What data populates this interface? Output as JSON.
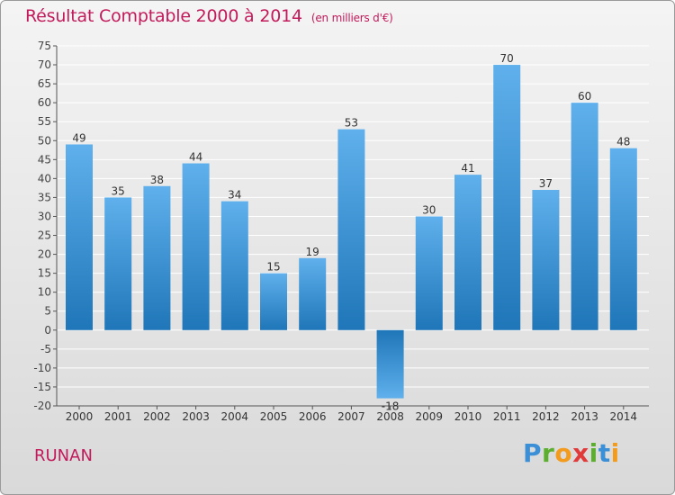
{
  "header": {
    "title": "Résultat Comptable 2000 à 2014",
    "subtitle": "(en milliers d'€)"
  },
  "footer": {
    "commune": "RUNAN",
    "logo_letters": [
      "P",
      "r",
      "o",
      "x",
      "i",
      "t",
      "i"
    ],
    "logo_colors": [
      "#3a8fd6",
      "#5cae2e",
      "#f29b1d",
      "#e03a3a",
      "#5cae2e",
      "#3a8fd6",
      "#f29b1d"
    ]
  },
  "colors": {
    "title": "#c21a5a",
    "bar_light": "#5fb0ec",
    "bar_dark": "#1f76b8",
    "grid": "#ffffff"
  },
  "chart_data": {
    "type": "bar",
    "title": "Résultat Comptable 2000 à 2014",
    "subtitle": "(en milliers d'€)",
    "categories": [
      "2000",
      "2001",
      "2002",
      "2003",
      "2004",
      "2005",
      "2006",
      "2007",
      "2008",
      "2009",
      "2010",
      "2011",
      "2012",
      "2013",
      "2014"
    ],
    "values": [
      49,
      35,
      38,
      44,
      34,
      15,
      19,
      53,
      -18,
      30,
      41,
      70,
      37,
      60,
      48
    ],
    "ylim": [
      -20,
      75
    ],
    "yticks": [
      -20,
      -15,
      -10,
      -5,
      0,
      5,
      10,
      15,
      20,
      25,
      30,
      35,
      40,
      45,
      50,
      55,
      60,
      65,
      70,
      75
    ],
    "grid": true,
    "data_labels": true
  }
}
